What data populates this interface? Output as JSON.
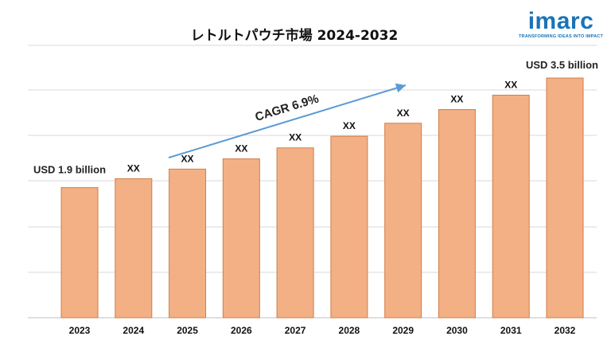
{
  "logo": {
    "wordmark": "imarc",
    "tagline": "TRANSFORMING IDEAS INTO IMPACT"
  },
  "colors": {
    "bar_fill": "#f3b085",
    "bar_stroke": "#d27d47",
    "grid": "#d9d9d9",
    "arrow": "#5b9bd5",
    "logo": "#1a73b8"
  },
  "chart_data": {
    "type": "bar",
    "title": "レトルトパウチ市場 2024-2032",
    "categories": [
      "2023",
      "2024",
      "2025",
      "2026",
      "2027",
      "2028",
      "2029",
      "2030",
      "2031",
      "2032"
    ],
    "values": [
      1.9,
      2.03,
      2.17,
      2.32,
      2.48,
      2.65,
      2.84,
      3.04,
      3.25,
      3.5
    ],
    "data_labels": [
      "",
      "XX",
      "XX",
      "XX",
      "XX",
      "XX",
      "XX",
      "XX",
      "XX",
      ""
    ],
    "start_label": "USD 1.9 billion",
    "end_label": "USD 3.5 billion",
    "annotation": "CAGR 6.9%",
    "ylim": [
      0,
      4.0
    ],
    "grid": true,
    "xlabel": "",
    "ylabel": ""
  }
}
